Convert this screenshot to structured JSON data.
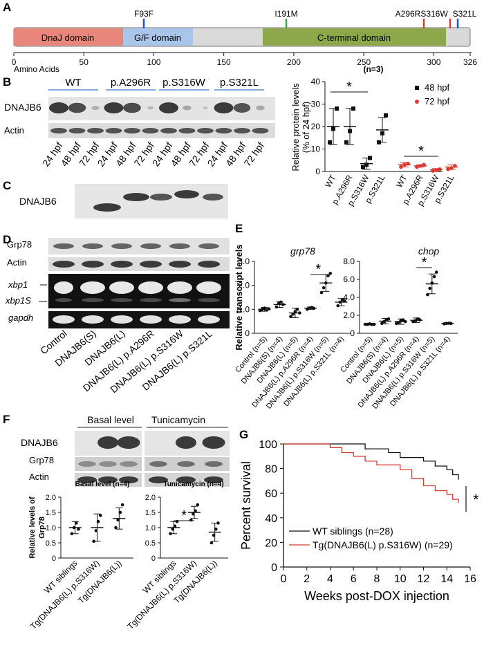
{
  "panels": {
    "a": "A",
    "b": "B",
    "c": "C",
    "d": "D",
    "e": "E",
    "f": "F",
    "g": "G"
  },
  "colors": {
    "dnaj": "#e8867c",
    "gf": "#a9c5ea",
    "linker": "#d9d9d9",
    "cterm": "#8da84a",
    "black": "#111111",
    "red": "#d93a30"
  },
  "panel_a": {
    "domains": {
      "dnaj": "DnaJ domain",
      "gf": "G/F domain",
      "cterm": "C-terminal domain"
    },
    "variants": [
      "F93F",
      "I191M",
      "A296R",
      "S316W",
      "S321L"
    ],
    "ticks": [
      "0",
      "50",
      "100",
      "150",
      "200",
      "250",
      "300",
      "326"
    ],
    "axis_label": "Amino Acids"
  },
  "panel_b": {
    "groups": [
      "WT",
      "p.A296R",
      "p.S316W",
      "p.S321L"
    ],
    "rows": [
      "DNAJB6",
      "Actin"
    ],
    "lanes": [
      "24 hpf",
      "48 hpf",
      "72 hpf",
      "24 hpf",
      "48 hpf",
      "72 hpf",
      "24 hpf",
      "48 hpf",
      "72 hpf",
      "24 hpf",
      "48 hpf",
      "72 hpf"
    ]
  },
  "panel_c": {
    "row": "DNAJB6"
  },
  "panel_d": {
    "rows": [
      "Grp78",
      "Actin",
      "xbp1",
      "xbp1S",
      "gapdh"
    ],
    "lanes": [
      "Control",
      "DNAJB6(S)",
      "DNAJB6(L)",
      "DNAJB6(L) p.A296R",
      "DNAJB6(L) p.S316W",
      "DNAJB6(L) p.S321L"
    ]
  },
  "panel_f": {
    "headers": [
      "Basal level",
      "Tunicamycin"
    ],
    "rows": [
      "DNAJB6",
      "Grp78",
      "Actin"
    ]
  },
  "chart_data": [
    {
      "id": "B-quant",
      "type": "scatter",
      "title": "(n=3)",
      "ylabel": "Relative protein levels (% of 24 hpf)",
      "ylim": [
        0,
        40
      ],
      "yticks": [
        "0",
        "10",
        "20",
        "30",
        "40"
      ],
      "categories": [
        "WT",
        "p.A296R",
        "p.S316W",
        "p.S321L"
      ],
      "legend": [
        "48 hpf",
        "72 hpf"
      ],
      "series": [
        {
          "name": "48 hpf",
          "means": [
            20,
            20,
            3.5,
            18.5
          ],
          "sd": [
            8,
            8,
            2.5,
            5.5
          ],
          "points": [
            [
              13,
              19,
              28
            ],
            [
              13,
              18,
              28
            ],
            [
              2,
              3,
              6
            ],
            [
              13,
              17,
              25
            ]
          ]
        },
        {
          "name": "72 hpf",
          "means": [
            3,
            2.5,
            0.8,
            2
          ],
          "sd": [
            1,
            0.5,
            0.5,
            1
          ],
          "points": [
            [
              2,
              3,
              3.5
            ],
            [
              2,
              2.5,
              3
            ],
            [
              0.3,
              0.6,
              1
            ],
            [
              1,
              1.5,
              2.5
            ]
          ]
        }
      ],
      "significance": [
        "*",
        "*"
      ]
    },
    {
      "id": "E-grp78",
      "type": "scatter",
      "title": "grp78",
      "ylabel": "Relative transcript levels",
      "ylim": [
        0,
        3
      ],
      "yticks": [
        "0",
        "1.0",
        "2.0",
        "3.0"
      ],
      "categories": [
        "Control (n=5)",
        "DNAJB6(S) (n=4)",
        "DNAJB6(L) (n=5)",
        "DNAJB6(L) p.A296R (n=4)",
        "DNAJB6(L) p.S316W (n=5)",
        "DNAJB6(L) p.S321L (n=4)"
      ],
      "means": [
        1.0,
        1.2,
        0.85,
        1.05,
        2.1,
        1.3
      ],
      "sd": [
        0.08,
        0.12,
        0.2,
        0.05,
        0.35,
        0.15
      ],
      "points": [
        [
          0.95,
          1.0,
          1.05,
          0.98,
          1.02
        ],
        [
          1.1,
          1.25,
          1.3,
          1.2
        ],
        [
          0.7,
          0.8,
          0.9,
          1.0,
          0.85
        ],
        [
          1.0,
          1.05,
          1.08,
          1.04
        ],
        [
          1.7,
          1.9,
          2.1,
          2.4,
          2.5
        ],
        [
          1.15,
          1.3,
          1.4,
          1.35
        ]
      ],
      "significance": "*"
    },
    {
      "id": "E-chop",
      "type": "scatter",
      "title": "chop",
      "ylim": [
        0,
        8
      ],
      "yticks": [
        "0",
        "2.0",
        "4.0",
        "6.0",
        "8.0"
      ],
      "categories": [
        "Control (n=5)",
        "DNAJB6(S) (n=4)",
        "DNAJB6(L) (n=5)",
        "DNAJB6(L) p.A296R (n=4)",
        "DNAJB6(L) p.S316W (n=5)",
        "DNAJB6(L) p.S321L (n=4)"
      ],
      "means": [
        1.0,
        1.35,
        1.3,
        1.45,
        5.5,
        1.1
      ],
      "sd": [
        0.05,
        0.3,
        0.3,
        0.25,
        1.1,
        0.05
      ],
      "points": [
        [
          1.0,
          1.0,
          1.05,
          0.98,
          1.0
        ],
        [
          1.1,
          1.3,
          1.5,
          1.6
        ],
        [
          1.1,
          1.2,
          1.4,
          1.5,
          1.3
        ],
        [
          1.3,
          1.4,
          1.6,
          1.5
        ],
        [
          4.3,
          5.0,
          5.6,
          6.3,
          6.8
        ],
        [
          1.05,
          1.1,
          1.12,
          1.1
        ]
      ],
      "significance": "*"
    },
    {
      "id": "F-basal",
      "type": "scatter",
      "title": "Basal level (n=4)",
      "ylabel": "Relative levels of Grp78",
      "ylim": [
        0,
        2
      ],
      "yticks": [
        "0",
        "0.5",
        "1.0",
        "1.5",
        "2.0"
      ],
      "categories": [
        "WT siblings",
        "Tg(DNAJB6(L) p.S316W)",
        "Tg(DNAJB6(L))"
      ],
      "means": [
        1.0,
        1.0,
        1.3
      ],
      "sd": [
        0.2,
        0.45,
        0.35
      ],
      "points": [
        [
          0.8,
          1.0,
          1.15,
          0.95
        ],
        [
          0.55,
          0.9,
          1.2,
          1.4
        ],
        [
          1.0,
          1.25,
          1.5,
          1.75
        ]
      ]
    },
    {
      "id": "F-tunicamycin",
      "type": "scatter",
      "title": "Tunicamycin (n=4)",
      "ylim": [
        0,
        2
      ],
      "yticks": [
        "0",
        "0.5",
        "1.0",
        "1.5",
        "2.0"
      ],
      "categories": [
        "WT siblings",
        "Tg(DNAJB6(L) p.S316W)",
        "Tg(DNAJB6(L))"
      ],
      "means": [
        1.0,
        1.5,
        0.85
      ],
      "sd": [
        0.2,
        0.2,
        0.3
      ],
      "points": [
        [
          0.8,
          0.95,
          1.05,
          1.2
        ],
        [
          1.25,
          1.45,
          1.55,
          1.75
        ],
        [
          0.5,
          0.75,
          0.95,
          1.15
        ]
      ],
      "significance": "*"
    },
    {
      "id": "G-survival",
      "type": "line",
      "xlabel": "Weeks post-DOX injection",
      "ylabel": "Percent survival",
      "xlim": [
        0,
        16
      ],
      "ylim": [
        0,
        100
      ],
      "xticks": [
        "0",
        "2",
        "4",
        "6",
        "8",
        "10",
        "12",
        "14",
        "16"
      ],
      "yticks": [
        "0",
        "20",
        "40",
        "60",
        "80",
        "100"
      ],
      "series": [
        {
          "name": "WT siblings (n=28)",
          "steps": [
            [
              0,
              100
            ],
            [
              7,
              100
            ],
            [
              7,
              96
            ],
            [
              9,
              96
            ],
            [
              9,
              93
            ],
            [
              10,
              93
            ],
            [
              10,
              89
            ],
            [
              12,
              89
            ],
            [
              12,
              86
            ],
            [
              13,
              86
            ],
            [
              13,
              82
            ],
            [
              14,
              82
            ],
            [
              14,
              79
            ],
            [
              14.5,
              79
            ],
            [
              14.5,
              75
            ],
            [
              15,
              75
            ],
            [
              15,
              71
            ]
          ]
        },
        {
          "name": "Tg(DNAJB6(L) p.S316W) (n=29)",
          "steps": [
            [
              0,
              100
            ],
            [
              4,
              100
            ],
            [
              4,
              97
            ],
            [
              5,
              97
            ],
            [
              5,
              93
            ],
            [
              6,
              93
            ],
            [
              6,
              90
            ],
            [
              7,
              90
            ],
            [
              7,
              86
            ],
            [
              8,
              86
            ],
            [
              8,
              83
            ],
            [
              10,
              83
            ],
            [
              10,
              79
            ],
            [
              11,
              79
            ],
            [
              11,
              72
            ],
            [
              12,
              72
            ],
            [
              12,
              66
            ],
            [
              13,
              66
            ],
            [
              13,
              62
            ],
            [
              14,
              62
            ],
            [
              14,
              59
            ],
            [
              14.5,
              59
            ],
            [
              14.5,
              55
            ],
            [
              15,
              55
            ],
            [
              15,
              52
            ]
          ]
        }
      ],
      "significance": "*"
    }
  ]
}
